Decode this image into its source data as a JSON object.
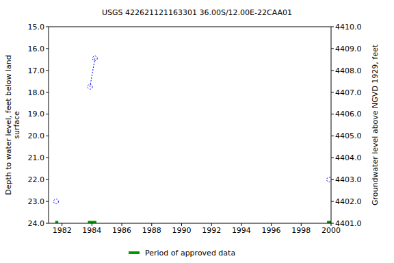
{
  "chart_data": {
    "type": "line",
    "title": "USGS 422621121163301 36.00S/12.00E-22CAA01",
    "y_label": "Depth to water level, feet below land surface",
    "y2_label": "Groundwater level above NGVD 1929, feet",
    "xlim": [
      1981.1,
      2000
    ],
    "xticks": [
      1982,
      1984,
      1986,
      1988,
      1990,
      1992,
      1994,
      1996,
      1998,
      2000
    ],
    "ylim": [
      24,
      15
    ],
    "yticks": [
      {
        "value": 15,
        "label": "15.0"
      },
      {
        "value": 16,
        "label": "16.0"
      },
      {
        "value": 17,
        "label": "17.0"
      },
      {
        "value": 18,
        "label": "18.0"
      },
      {
        "value": 19,
        "label": "19.0"
      },
      {
        "value": 20,
        "label": "20.0"
      },
      {
        "value": 21,
        "label": "21.0"
      },
      {
        "value": 22,
        "label": "22.0"
      },
      {
        "value": 23,
        "label": "23.0"
      },
      {
        "value": 24,
        "label": "24.0"
      }
    ],
    "y2lim": [
      4401,
      4410
    ],
    "y2ticks": [
      {
        "value": 4401,
        "label": "4401.0"
      },
      {
        "value": 4402,
        "label": "4402.0"
      },
      {
        "value": 4403,
        "label": "4403.0"
      },
      {
        "value": 4404,
        "label": "4404.0"
      },
      {
        "value": 4405,
        "label": "4405.0"
      },
      {
        "value": 4406,
        "label": "4406.0"
      },
      {
        "value": 4407,
        "label": "4407.0"
      },
      {
        "value": 4408,
        "label": "4408.0"
      },
      {
        "value": 4409,
        "label": "4409.0"
      },
      {
        "value": 4410,
        "label": "4410.0"
      }
    ],
    "grid": false,
    "legend": "bottom",
    "series": [
      {
        "color": "#0000ff",
        "marker": "circle",
        "line_style": "dotted",
        "x": [
          1981.6
        ],
        "values": [
          23
        ]
      },
      {
        "color": "#0000ff",
        "marker": "circle",
        "line_style": "dotted",
        "x": [
          1983.87,
          1984.2
        ],
        "values": [
          17.75,
          16.45
        ]
      },
      {
        "color": "#0000ff",
        "marker": "circle",
        "line_style": "dotted",
        "x": [
          1999.87
        ],
        "values": [
          22
        ]
      },
      {
        "name": "Period of approved data",
        "color": "#009900",
        "axis": "y2",
        "periods": [
          [
            1981.55,
            1981.75
          ],
          [
            1983.73,
            1984.3
          ],
          [
            1999.73,
            2000
          ]
        ]
      }
    ]
  }
}
